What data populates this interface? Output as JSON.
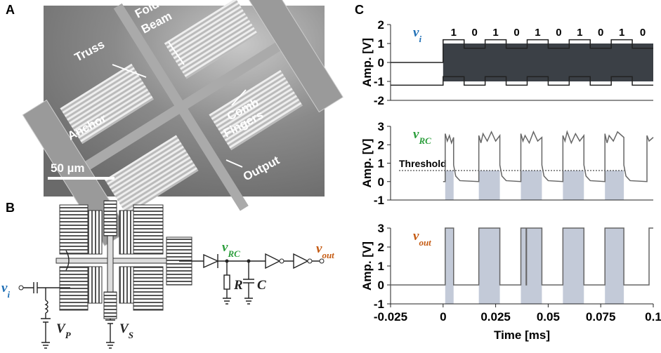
{
  "panels": {
    "a": {
      "label": "A",
      "truss": "Truss",
      "folded": [
        "Folded",
        "Beam"
      ],
      "anchor": "Anchor",
      "comb": [
        "Comb",
        "Fingers"
      ],
      "output": "Output",
      "scale": "50 µm"
    },
    "b": {
      "label": "B",
      "vi": {
        "symbol": "v",
        "subscript": "i"
      },
      "vp": {
        "symbol": "V",
        "subscript": "P"
      },
      "vs": {
        "symbol": "V",
        "subscript": "S"
      },
      "vrc": {
        "symbol": "v",
        "subscript": "RC"
      },
      "r": "R",
      "c": "C",
      "vout": {
        "symbol": "v",
        "subscript": "out"
      }
    },
    "c": {
      "label": "C"
    }
  },
  "chart_data": [
    {
      "type": "line",
      "title": {
        "symbol": "v",
        "subscript": "i"
      },
      "title_color": "#1f6fb5",
      "ylabel": "Amp. [V]",
      "xlim": [
        -0.025,
        0.1
      ],
      "ylim": [
        -2,
        2
      ],
      "yticks": [
        -2,
        -1,
        0,
        1,
        2
      ],
      "bits": [
        "1",
        "0",
        "1",
        "0",
        "1",
        "0",
        "1",
        "0",
        "1",
        "0"
      ],
      "series": [
        {
          "kind": "band",
          "color": "#3b4046",
          "x": [
            0,
            0.1
          ],
          "values": [
            1,
            1
          ],
          "lower": [
            -1,
            -1
          ]
        },
        {
          "color": "#222222",
          "x": [
            -0.025,
            0,
            0,
            0.01,
            0.01,
            0.02,
            0.02,
            0.03,
            0.03,
            0.04,
            0.04,
            0.05,
            0.05,
            0.06,
            0.06,
            0.07,
            0.07,
            0.08,
            0.08,
            0.09,
            0.09,
            0.1
          ],
          "values": [
            0,
            0,
            1.2,
            1.2,
            0.75,
            0.75,
            1.2,
            1.2,
            0.75,
            0.75,
            1.2,
            1.2,
            0.75,
            0.75,
            1.2,
            1.2,
            0.75,
            0.75,
            1.2,
            1.2,
            0.75,
            0.75
          ]
        },
        {
          "color": "#222222",
          "x": [
            -0.025,
            0,
            0,
            0.01,
            0.01,
            0.02,
            0.02,
            0.03,
            0.03,
            0.04,
            0.04,
            0.05,
            0.05,
            0.06,
            0.06,
            0.07,
            0.07,
            0.08,
            0.08,
            0.09,
            0.09,
            0.1
          ],
          "values": [
            -1.2,
            -1.2,
            -0.75,
            -0.75,
            -1.2,
            -1.2,
            -0.75,
            -0.75,
            -1.2,
            -1.2,
            -0.75,
            -0.75,
            -1.2,
            -1.2,
            -0.75,
            -0.75,
            -1.2,
            -1.2,
            -0.75,
            -0.75,
            -1.2,
            -1.2
          ]
        }
      ]
    },
    {
      "type": "line",
      "title": {
        "symbol": "v",
        "subscript": "RC"
      },
      "title_color": "#2a9d3a",
      "ylabel": "Amp. [V]",
      "xlim": [
        -0.025,
        0.1
      ],
      "ylim": [
        -1,
        3
      ],
      "yticks": [
        -1,
        0,
        1,
        2,
        3
      ],
      "threshold": {
        "value": 0.6,
        "label": "Threshold"
      },
      "series": [
        {
          "color": "#666666",
          "x": [
            0,
            0.001,
            0.001,
            0.002,
            0.003,
            0.004,
            0.005,
            0.005,
            0.006,
            0.008,
            0.017,
            0.017,
            0.018,
            0.019,
            0.021,
            0.023,
            0.025,
            0.027,
            0.027,
            0.028,
            0.03,
            0.037,
            0.037,
            0.038,
            0.039,
            0.041,
            0.043,
            0.045,
            0.047,
            0.047,
            0.048,
            0.05,
            0.057,
            0.057,
            0.058,
            0.059,
            0.061,
            0.063,
            0.065,
            0.067,
            0.067,
            0.068,
            0.07,
            0.077,
            0.077,
            0.078,
            0.079,
            0.081,
            0.083,
            0.086,
            0.086,
            0.087,
            0.089,
            0.097,
            0.097,
            0.098,
            0.1
          ],
          "values": [
            0,
            0,
            2.6,
            2.2,
            2.5,
            2.1,
            2.4,
            0.9,
            0.3,
            0.05,
            0,
            2.5,
            2.1,
            2.6,
            2.2,
            2.7,
            2.2,
            2.5,
            0.9,
            0.3,
            0.05,
            0,
            2.6,
            2.2,
            2.5,
            2.1,
            2.7,
            2.2,
            2.4,
            0.9,
            0.3,
            0.05,
            0,
            2.5,
            2.2,
            2.7,
            2.1,
            2.6,
            2.2,
            2.5,
            0.9,
            0.3,
            0.05,
            0,
            2.6,
            2.1,
            2.5,
            2.2,
            2.7,
            2.4,
            0.9,
            0.3,
            0.05,
            0,
            2.5,
            2.2,
            2.4
          ]
        }
      ]
    },
    {
      "type": "line",
      "title": {
        "symbol": "v",
        "subscript": "out"
      },
      "title_color": "#c55a11",
      "ylabel": "Amp. [V]",
      "xlabel": "Time [ms]",
      "xlim": [
        -0.025,
        0.1
      ],
      "ylim": [
        -1,
        3
      ],
      "yticks": [
        -1,
        0,
        1,
        2,
        3
      ],
      "xticks": [
        -0.025,
        0,
        0.025,
        0.05,
        0.075,
        0.1
      ],
      "spans": [
        [
          0.001,
          0.005
        ],
        [
          0.017,
          0.027
        ],
        [
          0.037,
          0.047
        ],
        [
          0.057,
          0.067
        ],
        [
          0.077,
          0.086
        ]
      ],
      "series": [
        {
          "color": "#666666",
          "x": [
            -0.025,
            0.001,
            0.001,
            0.005,
            0.005,
            0.017,
            0.017,
            0.027,
            0.027,
            0.037,
            0.037,
            0.0395,
            0.0395,
            0.0397,
            0.0397,
            0.047,
            0.047,
            0.057,
            0.057,
            0.067,
            0.067,
            0.077,
            0.077,
            0.086,
            0.086,
            0.098,
            0.098,
            0.1
          ],
          "values": [
            0,
            0,
            3,
            3,
            0,
            0,
            3,
            3,
            0,
            0,
            3,
            3,
            0,
            0,
            3,
            3,
            0,
            0,
            3,
            3,
            0,
            0,
            3,
            3,
            0,
            0,
            3,
            3
          ]
        }
      ]
    }
  ]
}
